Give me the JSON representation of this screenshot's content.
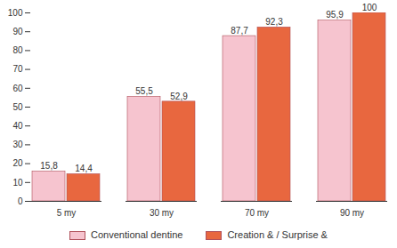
{
  "chart_data": {
    "type": "bar",
    "categories": [
      "5 my",
      "30 my",
      "70 my",
      "90 my"
    ],
    "series": [
      {
        "name": "Conventional dentine",
        "color": "#f6c4cf",
        "values": [
          15.8,
          55.5,
          87.7,
          95.9
        ],
        "value_labels": [
          "15,8",
          "55,5",
          "87,7",
          "95,9"
        ]
      },
      {
        "name": "Creation & / Surprise &",
        "color": "#e8673f",
        "values": [
          14.4,
          52.9,
          92.3,
          100
        ],
        "value_labels": [
          "14,4",
          "52,9",
          "92,3",
          "100"
        ]
      }
    ],
    "ylim": [
      0,
      100
    ],
    "yticks": [
      0,
      10,
      20,
      30,
      40,
      50,
      60,
      70,
      80,
      90,
      100
    ],
    "grid": false,
    "data_labels": true,
    "legend": "bottom"
  }
}
